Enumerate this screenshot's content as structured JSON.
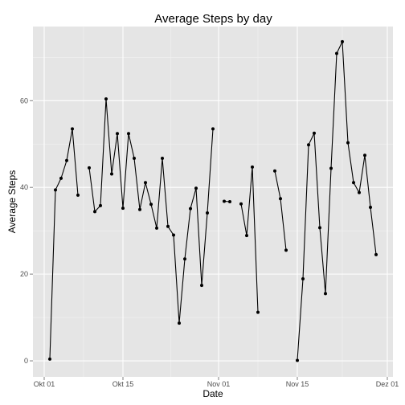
{
  "chart_data": {
    "type": "line",
    "title": "Average Steps by day",
    "xlabel": "Date",
    "ylabel": "Average Steps",
    "x_ticks": [
      {
        "date": "2012-10-01",
        "label": "Okt 01"
      },
      {
        "date": "2012-10-15",
        "label": "Okt 15"
      },
      {
        "date": "2012-11-01",
        "label": "Nov 01"
      },
      {
        "date": "2012-11-15",
        "label": "Nov 15"
      },
      {
        "date": "2012-12-01",
        "label": "Dez 01"
      }
    ],
    "y_ticks": [
      0,
      20,
      40,
      60
    ],
    "xlim": [
      "2012-09-29",
      "2012-12-02"
    ],
    "ylim": [
      -3.7,
      77.1
    ],
    "grid": true,
    "colors": {
      "panel": "#e5e5e5",
      "grid_major": "#ffffff",
      "grid_minor": "#f2f2f2",
      "line": "#000000"
    },
    "series": [
      {
        "points": [
          {
            "x": "2012-10-02",
            "y": 0.4
          },
          {
            "x": "2012-10-03",
            "y": 39.4
          },
          {
            "x": "2012-10-04",
            "y": 42.1
          },
          {
            "x": "2012-10-05",
            "y": 46.2
          },
          {
            "x": "2012-10-06",
            "y": 53.5
          },
          {
            "x": "2012-10-07",
            "y": 38.2
          },
          {
            "x": "2012-10-08",
            "y": null
          },
          {
            "x": "2012-10-09",
            "y": 44.5
          },
          {
            "x": "2012-10-10",
            "y": 34.4
          },
          {
            "x": "2012-10-11",
            "y": 35.8
          },
          {
            "x": "2012-10-12",
            "y": 60.4
          },
          {
            "x": "2012-10-13",
            "y": 43.1
          },
          {
            "x": "2012-10-14",
            "y": 52.4
          },
          {
            "x": "2012-10-15",
            "y": 35.2
          },
          {
            "x": "2012-10-16",
            "y": 52.4
          },
          {
            "x": "2012-10-17",
            "y": 46.7
          },
          {
            "x": "2012-10-18",
            "y": 34.9
          },
          {
            "x": "2012-10-19",
            "y": 41.1
          },
          {
            "x": "2012-10-20",
            "y": 36.1
          },
          {
            "x": "2012-10-21",
            "y": 30.6
          },
          {
            "x": "2012-10-22",
            "y": 46.7
          },
          {
            "x": "2012-10-23",
            "y": 31.0
          },
          {
            "x": "2012-10-24",
            "y": 29.0
          },
          {
            "x": "2012-10-25",
            "y": 8.7
          },
          {
            "x": "2012-10-26",
            "y": 23.5
          },
          {
            "x": "2012-10-27",
            "y": 35.1
          },
          {
            "x": "2012-10-28",
            "y": 39.8
          },
          {
            "x": "2012-10-29",
            "y": 17.4
          },
          {
            "x": "2012-10-30",
            "y": 34.1
          },
          {
            "x": "2012-10-31",
            "y": 53.5
          },
          {
            "x": "2012-11-01",
            "y": null
          },
          {
            "x": "2012-11-02",
            "y": 36.8
          },
          {
            "x": "2012-11-03",
            "y": 36.7
          },
          {
            "x": "2012-11-04",
            "y": null
          },
          {
            "x": "2012-11-05",
            "y": 36.2
          },
          {
            "x": "2012-11-06",
            "y": 28.9
          },
          {
            "x": "2012-11-07",
            "y": 44.7
          },
          {
            "x": "2012-11-08",
            "y": 11.2
          },
          {
            "x": "2012-11-09",
            "y": null
          },
          {
            "x": "2012-11-10",
            "y": null
          },
          {
            "x": "2012-11-11",
            "y": 43.8
          },
          {
            "x": "2012-11-12",
            "y": 37.4
          },
          {
            "x": "2012-11-13",
            "y": 25.5
          },
          {
            "x": "2012-11-14",
            "y": null
          },
          {
            "x": "2012-11-15",
            "y": 0.1
          },
          {
            "x": "2012-11-16",
            "y": 18.9
          },
          {
            "x": "2012-11-17",
            "y": 49.8
          },
          {
            "x": "2012-11-18",
            "y": 52.5
          },
          {
            "x": "2012-11-19",
            "y": 30.7
          },
          {
            "x": "2012-11-20",
            "y": 15.5
          },
          {
            "x": "2012-11-21",
            "y": 44.4
          },
          {
            "x": "2012-11-22",
            "y": 70.9
          },
          {
            "x": "2012-11-23",
            "y": 73.6
          },
          {
            "x": "2012-11-24",
            "y": 50.3
          },
          {
            "x": "2012-11-25",
            "y": 41.1
          },
          {
            "x": "2012-11-26",
            "y": 38.8
          },
          {
            "x": "2012-11-27",
            "y": 47.4
          },
          {
            "x": "2012-11-28",
            "y": 35.4
          },
          {
            "x": "2012-11-29",
            "y": 24.5
          }
        ]
      }
    ]
  }
}
